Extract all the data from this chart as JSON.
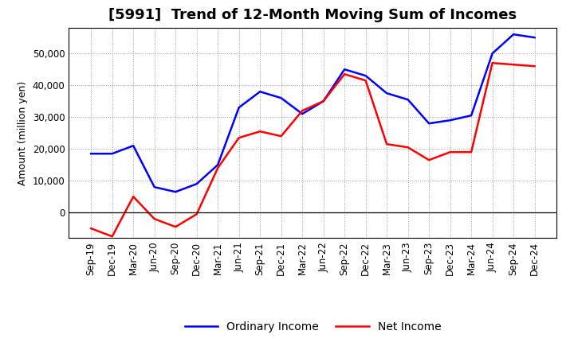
{
  "title": "[5991]  Trend of 12-Month Moving Sum of Incomes",
  "ylabel": "Amount (million yen)",
  "x_labels": [
    "Sep-19",
    "Dec-19",
    "Mar-20",
    "Jun-20",
    "Sep-20",
    "Dec-20",
    "Mar-21",
    "Jun-21",
    "Sep-21",
    "Dec-21",
    "Mar-22",
    "Jun-22",
    "Sep-22",
    "Dec-22",
    "Mar-23",
    "Jun-23",
    "Sep-23",
    "Dec-23",
    "Mar-24",
    "Jun-24",
    "Sep-24",
    "Dec-24"
  ],
  "ordinary_income": [
    18500,
    18500,
    21000,
    8000,
    6500,
    9000,
    15000,
    33000,
    38000,
    36000,
    31000,
    35000,
    45000,
    43000,
    37500,
    35500,
    28000,
    29000,
    30500,
    50000,
    56000,
    55000
  ],
  "net_income": [
    -5000,
    -7500,
    5000,
    -2000,
    -4500,
    -500,
    14000,
    23500,
    25500,
    24000,
    32000,
    35000,
    43500,
    41500,
    21500,
    20500,
    16500,
    19000,
    19000,
    47000,
    46500,
    46000
  ],
  "ordinary_color": "#0000FF",
  "net_color": "#FF0000",
  "background_color": "#FFFFFF",
  "plot_bg_color": "#FFFFFF",
  "grid_color": "#999999",
  "ylim": [
    -8000,
    58000
  ],
  "yticks": [
    0,
    10000,
    20000,
    30000,
    40000,
    50000
  ],
  "legend_ordinary": "Ordinary Income",
  "legend_net": "Net Income",
  "title_fontsize": 13,
  "axis_fontsize": 9,
  "tick_fontsize": 8.5
}
